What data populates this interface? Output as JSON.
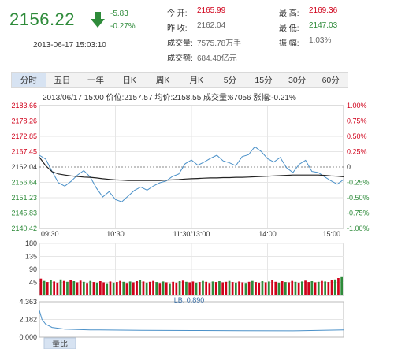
{
  "quote": {
    "price": "2156.22",
    "change": "-5.83",
    "change_pct": "-0.27%",
    "datetime": "2013-06-17 15:03:10",
    "fields": [
      {
        "label": "今  开:",
        "value": "2165.99",
        "color": "red"
      },
      {
        "label": "昨  收:",
        "value": "2162.04",
        "color": "gray"
      },
      {
        "label": "成交量:",
        "value": "7575.78万手",
        "color": "gray"
      },
      {
        "label": "成交额:",
        "value": "684.40亿元",
        "color": "gray"
      },
      {
        "label": "最  高:",
        "value": "2169.36",
        "color": "red"
      },
      {
        "label": "最  低:",
        "value": "2147.03",
        "color": "grn"
      },
      {
        "label": "振  幅:",
        "value": "1.03%",
        "color": "gray"
      }
    ]
  },
  "tabs": [
    "分时",
    "五日",
    "一年",
    "日K",
    "周K",
    "月K",
    "5分",
    "15分",
    "30分",
    "60分"
  ],
  "active_tab": 0,
  "status_line": "2013/06/17 15:00  价位:2157.57  均价:2158.55  成交量:67056  涨幅:-0.21%",
  "volume_badge": "LB: 0.890",
  "ratio_tab": "量比",
  "colors": {
    "up": "#d0021b",
    "down": "#2e8b3a",
    "price_line": "#4a90c8",
    "avg_line": "#222222",
    "grid": "#e6e6e6"
  },
  "chart_data": {
    "type": "line",
    "title": "",
    "x_ticks": [
      "09:30",
      "10:30",
      "11:30/13:00",
      "14:00",
      "15:00"
    ],
    "y_ticks_left": [
      "2183.66",
      "2178.26",
      "2172.85",
      "2167.45",
      "2162.04",
      "2156.64",
      "2151.23",
      "2145.83",
      "2140.42"
    ],
    "y_ticks_right": [
      "1.00%",
      "0.75%",
      "0.50%",
      "0.25%",
      "0",
      "-0.25%",
      "-0.50%",
      "-0.75%",
      "-1.00%"
    ],
    "ylim": [
      2140.42,
      2183.66
    ],
    "prev_close": 2162.04,
    "x": [
      0,
      5,
      10,
      15,
      20,
      25,
      30,
      35,
      40,
      45,
      50,
      55,
      60,
      65,
      70,
      75,
      80,
      85,
      90,
      95,
      100,
      105,
      110,
      115,
      120,
      125,
      130,
      135,
      140,
      145,
      150,
      155,
      160,
      165,
      170,
      175,
      180,
      185,
      190,
      195,
      200,
      205,
      210,
      215,
      220,
      225,
      230,
      235,
      240
    ],
    "series": [
      {
        "values": [
          2166.2,
          2164.8,
          2160.5,
          2156.5,
          2155.3,
          2157.0,
          2159.2,
          2160.8,
          2158.6,
          2154.6,
          2151.5,
          2153.4,
          2150.6,
          2149.8,
          2151.8,
          2153.8,
          2155.0,
          2153.9,
          2155.4,
          2156.5,
          2157.1,
          2158.7,
          2159.6,
          2163.2,
          2164.5,
          2162.7,
          2163.8,
          2165.1,
          2166.2,
          2164.2,
          2163.5,
          2162.5,
          2165.7,
          2166.4,
          2169.2,
          2167.5,
          2165.0,
          2163.8,
          2165.4,
          2161.8,
          2160.1,
          2163.0,
          2164.4,
          2160.5,
          2160.1,
          2158.6,
          2157.2,
          2156.0,
          2157.6
        ]
      },
      {
        "values": [
          2165.5,
          2162.5,
          2160.4,
          2159.6,
          2159.2,
          2158.9,
          2158.7,
          2158.5,
          2158.4,
          2158.2,
          2157.9,
          2157.7,
          2157.5,
          2157.4,
          2157.3,
          2157.3,
          2157.3,
          2157.3,
          2157.3,
          2157.3,
          2157.4,
          2157.5,
          2157.6,
          2157.8,
          2157.9,
          2158.0,
          2158.1,
          2158.2,
          2158.2,
          2158.3,
          2158.3,
          2158.4,
          2158.4,
          2158.5,
          2158.6,
          2158.7,
          2158.8,
          2158.9,
          2159.0,
          2159.1,
          2159.2,
          2159.2,
          2159.2,
          2159.2,
          2159.2,
          2159.1,
          2158.9,
          2158.8,
          2158.6
        ]
      }
    ],
    "volume": {
      "y_ticks": [
        "180",
        "135",
        "90",
        "45"
      ],
      "ylim": [
        0,
        180
      ],
      "values": [
        58,
        50,
        46,
        52,
        48,
        44,
        55,
        50,
        47,
        53,
        49,
        45,
        51,
        47,
        43,
        50,
        46,
        44,
        49,
        45,
        42,
        48,
        44,
        46,
        50,
        47,
        43,
        48,
        45,
        49,
        52,
        48,
        44,
        47,
        50,
        46,
        43,
        48,
        45,
        42,
        47,
        44,
        49,
        51,
        47,
        45,
        48,
        44,
        46,
        50,
        47,
        43,
        48,
        46,
        49,
        45,
        47,
        50,
        46,
        44,
        48,
        45,
        43,
        47,
        50,
        46,
        44,
        49,
        45,
        48,
        52,
        47,
        44,
        49,
        46,
        45,
        50,
        47,
        44,
        48,
        51,
        46,
        49,
        45,
        47,
        50,
        48,
        46,
        52,
        55,
        60,
        66
      ],
      "directions": [
        "u",
        "d",
        "u",
        "d",
        "u",
        "u",
        "d",
        "u",
        "d",
        "u",
        "d",
        "u",
        "u",
        "d",
        "u",
        "d",
        "u",
        "d",
        "u",
        "u",
        "d",
        "u",
        "d",
        "u",
        "u",
        "d",
        "u",
        "d",
        "u",
        "u",
        "d",
        "u",
        "d",
        "u",
        "u",
        "d",
        "u",
        "d",
        "u",
        "d",
        "u",
        "u",
        "d",
        "u",
        "d",
        "u",
        "u",
        "d",
        "u",
        "d",
        "u",
        "u",
        "d",
        "u",
        "d",
        "u",
        "u",
        "d",
        "u",
        "d",
        "u",
        "u",
        "d",
        "u",
        "d",
        "u",
        "u",
        "d",
        "u",
        "d",
        "u",
        "u",
        "d",
        "u",
        "d",
        "u",
        "u",
        "d",
        "u",
        "d",
        "u",
        "u",
        "d",
        "u",
        "d",
        "u",
        "d",
        "u",
        "u",
        "d",
        "u",
        "d"
      ]
    },
    "volume_ratio": {
      "y_ticks": [
        "4.363",
        "2.182",
        "0.000"
      ],
      "ylim": [
        0,
        4.363
      ],
      "x": [
        0,
        2,
        5,
        10,
        20,
        40,
        80,
        120,
        160,
        200,
        240
      ],
      "values": [
        3.3,
        2.2,
        1.6,
        1.2,
        1.0,
        0.9,
        0.85,
        0.82,
        0.8,
        0.79,
        0.89
      ]
    }
  }
}
